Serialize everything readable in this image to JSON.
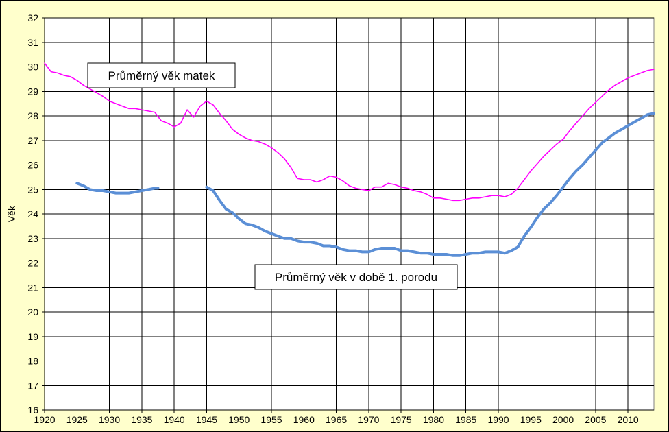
{
  "chart_data": {
    "type": "line",
    "title": "",
    "xlabel": "",
    "ylabel": "Věk",
    "xlim": [
      1920,
      2014
    ],
    "ylim": [
      16,
      32
    ],
    "x_ticks": [
      "1920",
      "1925",
      "1930",
      "1935",
      "1940",
      "1945",
      "1950",
      "1955",
      "1960",
      "1965",
      "1970",
      "1975",
      "1980",
      "1985",
      "1990",
      "1995",
      "2000",
      "2005",
      "2010"
    ],
    "y_ticks": [
      "16",
      "17",
      "18",
      "19",
      "20",
      "21",
      "22",
      "23",
      "24",
      "25",
      "26",
      "27",
      "28",
      "29",
      "30",
      "31",
      "32"
    ],
    "grid": true,
    "legend": "none",
    "annotations": [
      {
        "text": "Průměrný věk matek",
        "series": 0
      },
      {
        "text": "Průměrný věk v době 1. porodu",
        "series": 1
      }
    ],
    "series": [
      {
        "name": "Průměrný věk matek",
        "color": "#ff00ff",
        "segments": [
          [
            [
              1920,
              30.15
            ],
            [
              1921,
              29.8
            ],
            [
              1922,
              29.75
            ],
            [
              1923,
              29.65
            ],
            [
              1924,
              29.6
            ],
            [
              1925,
              29.45
            ],
            [
              1926,
              29.25
            ],
            [
              1927,
              29.1
            ],
            [
              1928,
              28.95
            ],
            [
              1929,
              28.8
            ],
            [
              1930,
              28.6
            ],
            [
              1931,
              28.5
            ],
            [
              1932,
              28.4
            ],
            [
              1933,
              28.3
            ],
            [
              1934,
              28.3
            ],
            [
              1935,
              28.25
            ],
            [
              1936,
              28.2
            ],
            [
              1937,
              28.15
            ],
            [
              1938,
              27.8
            ],
            [
              1939,
              27.7
            ],
            [
              1940,
              27.55
            ],
            [
              1941,
              27.7
            ],
            [
              1942,
              28.25
            ],
            [
              1943,
              27.95
            ],
            [
              1944,
              28.4
            ],
            [
              1945,
              28.6
            ],
            [
              1946,
              28.45
            ],
            [
              1947,
              28.1
            ],
            [
              1948,
              27.8
            ],
            [
              1949,
              27.45
            ],
            [
              1950,
              27.25
            ],
            [
              1951,
              27.1
            ],
            [
              1952,
              27.0
            ],
            [
              1953,
              26.95
            ],
            [
              1954,
              26.85
            ],
            [
              1955,
              26.7
            ],
            [
              1956,
              26.5
            ],
            [
              1957,
              26.25
            ],
            [
              1958,
              25.9
            ],
            [
              1959,
              25.45
            ],
            [
              1960,
              25.4
            ],
            [
              1961,
              25.4
            ],
            [
              1962,
              25.3
            ],
            [
              1963,
              25.4
            ],
            [
              1964,
              25.55
            ],
            [
              1965,
              25.5
            ],
            [
              1966,
              25.35
            ],
            [
              1967,
              25.15
            ],
            [
              1968,
              25.05
            ],
            [
              1969,
              25.0
            ],
            [
              1970,
              24.95
            ],
            [
              1971,
              25.1
            ],
            [
              1972,
              25.1
            ],
            [
              1973,
              25.25
            ],
            [
              1974,
              25.2
            ],
            [
              1975,
              25.1
            ],
            [
              1976,
              25.05
            ],
            [
              1977,
              24.95
            ],
            [
              1978,
              24.9
            ],
            [
              1979,
              24.8
            ],
            [
              1980,
              24.65
            ],
            [
              1981,
              24.65
            ],
            [
              1982,
              24.6
            ],
            [
              1983,
              24.55
            ],
            [
              1984,
              24.55
            ],
            [
              1985,
              24.6
            ],
            [
              1986,
              24.65
            ],
            [
              1987,
              24.65
            ],
            [
              1988,
              24.7
            ],
            [
              1989,
              24.75
            ],
            [
              1990,
              24.75
            ],
            [
              1991,
              24.7
            ],
            [
              1992,
              24.8
            ],
            [
              1993,
              25.05
            ],
            [
              1994,
              25.4
            ],
            [
              1995,
              25.75
            ],
            [
              1996,
              26.05
            ],
            [
              1997,
              26.35
            ],
            [
              1998,
              26.6
            ],
            [
              1999,
              26.85
            ],
            [
              2000,
              27.05
            ],
            [
              2001,
              27.4
            ],
            [
              2002,
              27.7
            ],
            [
              2003,
              28.0
            ],
            [
              2004,
              28.3
            ],
            [
              2005,
              28.55
            ],
            [
              2006,
              28.8
            ],
            [
              2007,
              29.05
            ],
            [
              2008,
              29.25
            ],
            [
              2009,
              29.4
            ],
            [
              2010,
              29.55
            ],
            [
              2011,
              29.65
            ],
            [
              2012,
              29.75
            ],
            [
              2013,
              29.85
            ],
            [
              2014,
              29.9
            ]
          ]
        ]
      },
      {
        "name": "Průměrný věk v době 1. porodu",
        "color": "#5b8fd6",
        "segments": [
          [
            [
              1925,
              25.25
            ],
            [
              1926,
              25.15
            ],
            [
              1927,
              25.0
            ],
            [
              1928,
              24.95
            ],
            [
              1929,
              24.95
            ],
            [
              1930,
              24.9
            ],
            [
              1931,
              24.85
            ],
            [
              1932,
              24.85
            ],
            [
              1933,
              24.85
            ],
            [
              1934,
              24.9
            ],
            [
              1935,
              24.95
            ],
            [
              1936,
              25.0
            ],
            [
              1937,
              25.05
            ],
            [
              1937.5,
              25.05
            ]
          ],
          [
            [
              1945,
              25.1
            ],
            [
              1946,
              24.95
            ],
            [
              1947,
              24.55
            ],
            [
              1948,
              24.2
            ],
            [
              1949,
              24.05
            ],
            [
              1950,
              23.8
            ],
            [
              1951,
              23.6
            ],
            [
              1952,
              23.55
            ],
            [
              1953,
              23.45
            ],
            [
              1954,
              23.3
            ],
            [
              1955,
              23.2
            ],
            [
              1956,
              23.1
            ],
            [
              1957,
              23.0
            ],
            [
              1958,
              23.0
            ],
            [
              1959,
              22.9
            ],
            [
              1960,
              22.85
            ],
            [
              1961,
              22.85
            ],
            [
              1962,
              22.8
            ],
            [
              1963,
              22.7
            ],
            [
              1964,
              22.7
            ],
            [
              1965,
              22.65
            ],
            [
              1966,
              22.55
            ],
            [
              1967,
              22.5
            ],
            [
              1968,
              22.5
            ],
            [
              1969,
              22.45
            ],
            [
              1970,
              22.45
            ],
            [
              1971,
              22.55
            ],
            [
              1972,
              22.6
            ],
            [
              1973,
              22.6
            ],
            [
              1974,
              22.6
            ],
            [
              1975,
              22.5
            ],
            [
              1976,
              22.5
            ],
            [
              1977,
              22.45
            ],
            [
              1978,
              22.4
            ],
            [
              1979,
              22.4
            ],
            [
              1980,
              22.35
            ],
            [
              1981,
              22.35
            ],
            [
              1982,
              22.35
            ],
            [
              1983,
              22.3
            ],
            [
              1984,
              22.3
            ],
            [
              1985,
              22.35
            ],
            [
              1986,
              22.4
            ],
            [
              1987,
              22.4
            ],
            [
              1988,
              22.45
            ],
            [
              1989,
              22.45
            ],
            [
              1990,
              22.45
            ],
            [
              1991,
              22.4
            ],
            [
              1992,
              22.5
            ],
            [
              1993,
              22.65
            ],
            [
              1994,
              23.1
            ],
            [
              1995,
              23.45
            ],
            [
              1996,
              23.85
            ],
            [
              1997,
              24.2
            ],
            [
              1998,
              24.45
            ],
            [
              1999,
              24.75
            ],
            [
              2000,
              25.1
            ],
            [
              2001,
              25.45
            ],
            [
              2002,
              25.75
            ],
            [
              2003,
              26.0
            ],
            [
              2004,
              26.3
            ],
            [
              2005,
              26.6
            ],
            [
              2006,
              26.9
            ],
            [
              2007,
              27.1
            ],
            [
              2008,
              27.3
            ],
            [
              2009,
              27.45
            ],
            [
              2010,
              27.6
            ],
            [
              2011,
              27.75
            ],
            [
              2012,
              27.9
            ],
            [
              2013,
              28.05
            ],
            [
              2014,
              28.1
            ]
          ]
        ]
      }
    ]
  }
}
